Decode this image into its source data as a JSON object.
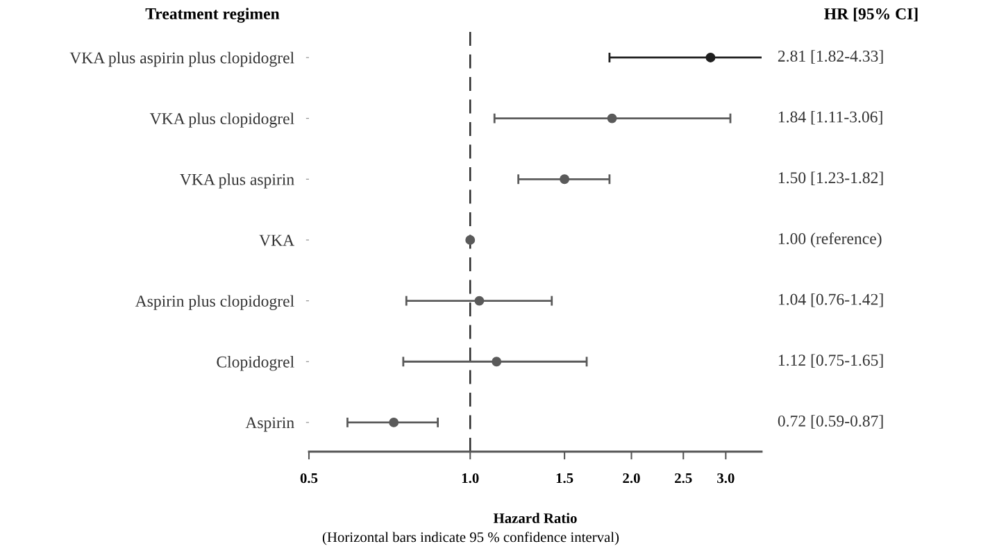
{
  "chart_data": {
    "type": "scatter",
    "orientation": "horizontal",
    "ylabel": "Treatment regimen",
    "xlabel": "Hazard Ratio",
    "categories": [
      "VKA plus aspirin plus clopidogrel",
      "VKA plus clopidogrel",
      "VKA plus aspirin",
      "VKA",
      "Aspirin plus clopidogrel",
      "Clopidogrel",
      "Aspirin"
    ],
    "values": [
      2.81,
      1.84,
      1.5,
      1.0,
      1.04,
      1.12,
      0.72
    ],
    "errors": [
      [
        1.82,
        4.33
      ],
      [
        1.11,
        3.06
      ],
      [
        1.23,
        1.82
      ],
      null,
      [
        0.76,
        1.42
      ],
      [
        0.75,
        1.65
      ],
      [
        0.59,
        0.87
      ]
    ],
    "colors": [
      "#1e1e1e",
      "#5a5a5a",
      "#5a5a5a",
      "#5a5a5a",
      "#5a5a5a",
      "#5a5a5a",
      "#5a5a5a"
    ],
    "value_labels": [
      "2.81 [1.82-4.33]",
      "1.84 [1.11-3.06]",
      "1.50 [1.23-1.82]",
      "1.00 (reference)",
      "1.04 [0.76-1.42]",
      "1.12 [0.75-1.65]",
      "0.72 [0.59-0.87]"
    ],
    "log": "x",
    "xlim": [
      0.5,
      3.5
    ],
    "xticks": [
      {
        "value": 0.5,
        "label": "0.5"
      },
      {
        "value": 1.0,
        "label": "1.0"
      },
      {
        "value": 1.5,
        "label": "1.5"
      },
      {
        "value": 2.0,
        "label": "2.0"
      },
      {
        "value": 2.5,
        "label": "2.5"
      },
      {
        "value": 3.0,
        "label": "3.0"
      }
    ],
    "ref_lines": [
      {
        "axis": "x",
        "value": 1.0,
        "line_style": "dashed",
        "color": "#2a2a2a"
      }
    ],
    "annotations": [
      "HR [95% CI]",
      "(Horizontal bars indicate 95 % confidence interval)"
    ],
    "marker": "circle",
    "grid": false,
    "legend": false
  }
}
